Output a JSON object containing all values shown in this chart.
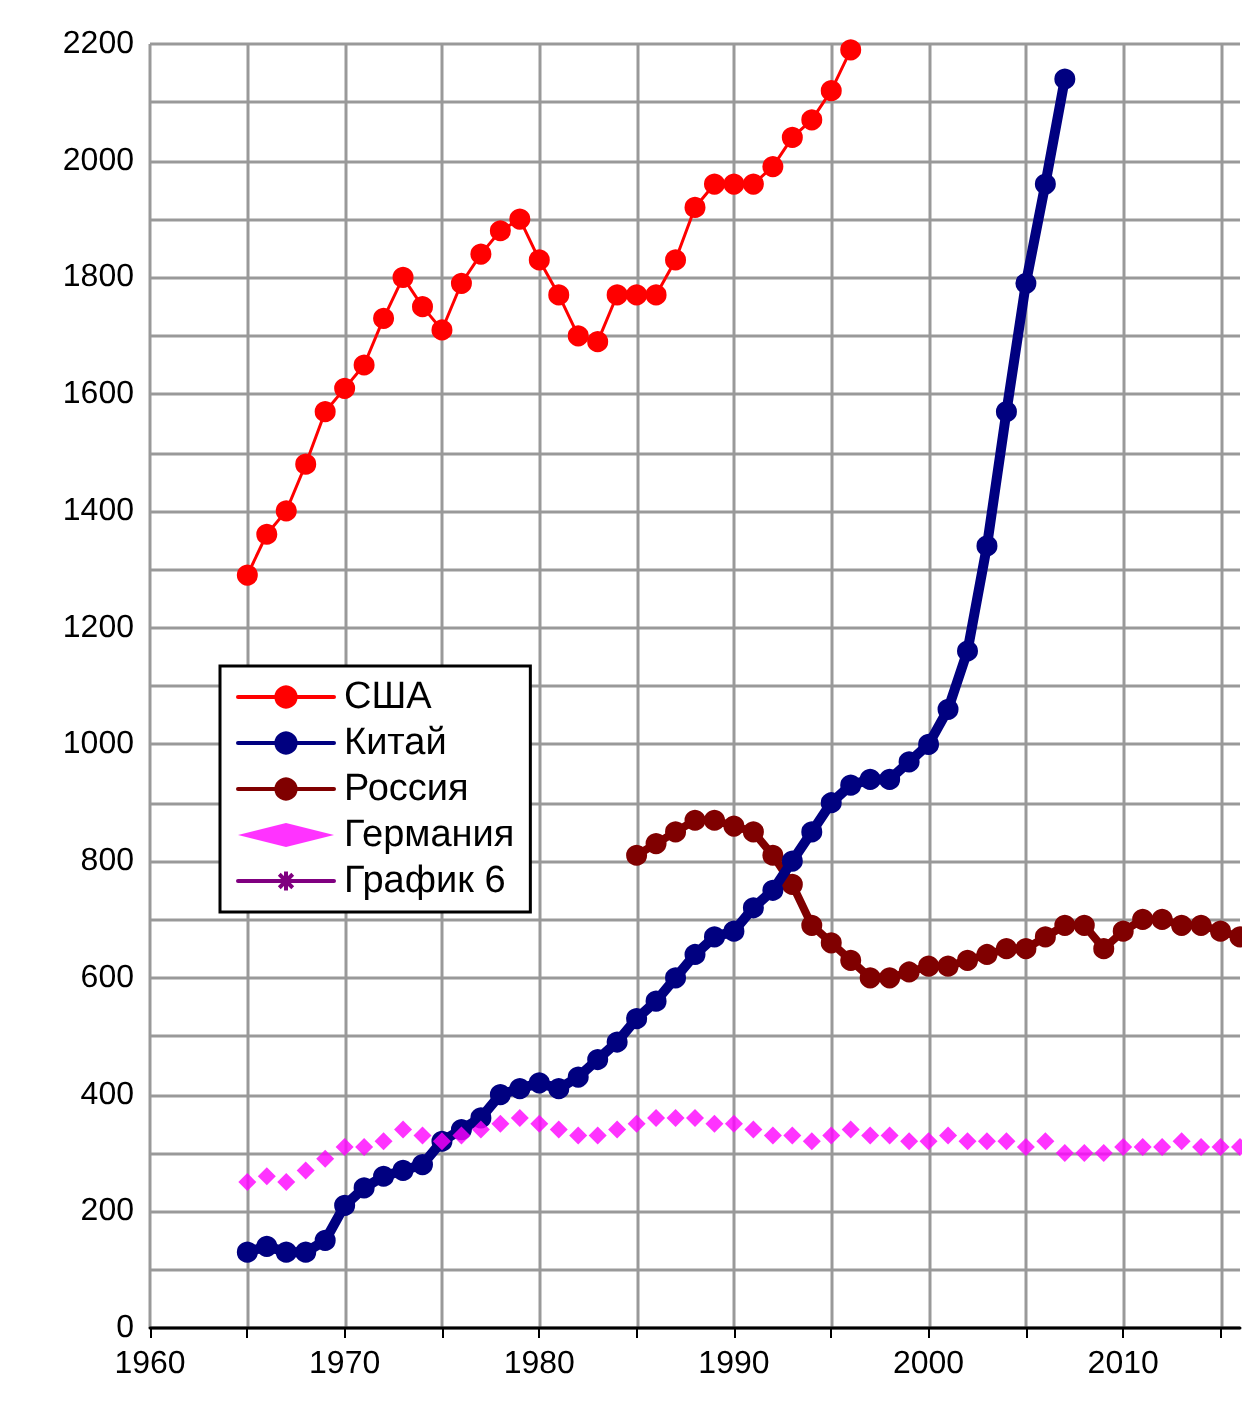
{
  "chart_data": {
    "type": "line",
    "x": [
      1965,
      1966,
      1967,
      1968,
      1969,
      1970,
      1971,
      1972,
      1973,
      1974,
      1975,
      1976,
      1977,
      1978,
      1979,
      1980,
      1981,
      1982,
      1983,
      1984,
      1985,
      1986,
      1987,
      1988,
      1989,
      1990,
      1991,
      1992,
      1993,
      1994,
      1995,
      1996,
      1997,
      1998,
      1999,
      2000,
      2001,
      2002,
      2003,
      2004,
      2005,
      2006,
      2007,
      2008,
      2009,
      2010,
      2011,
      2012,
      2013,
      2014,
      2015,
      2016
    ],
    "xlim": [
      1960,
      2016
    ],
    "xticks": [
      1960,
      {
        "value": 1965,
        "label": null
      },
      1970,
      {
        "value": 1975,
        "label": null
      },
      1980,
      {
        "value": 1985,
        "label": null
      },
      1990,
      {
        "value": 1995,
        "label": null
      },
      2000,
      {
        "value": 2005,
        "label": null
      },
      2010,
      {
        "value": 2015,
        "label": null
      }
    ],
    "ylim": [
      0,
      2200
    ],
    "yticks": [
      0,
      {
        "value": 100,
        "label": null
      },
      200,
      {
        "value": 300,
        "label": null
      },
      400,
      {
        "value": 500,
        "label": null
      },
      600,
      {
        "value": 700,
        "label": null
      },
      800,
      {
        "value": 900,
        "label": null
      },
      1000,
      {
        "value": 1100,
        "label": null
      },
      1200,
      {
        "value": 1300,
        "label": null
      },
      1400,
      {
        "value": 1500,
        "label": null
      },
      1600,
      {
        "value": 1700,
        "label": null
      },
      1800,
      {
        "value": 1900,
        "label": null
      },
      2000,
      {
        "value": 2100,
        "label": null
      },
      2200
    ],
    "grid": true,
    "legend": "left",
    "series": [
      {
        "name": "США",
        "color": "#ff0000",
        "marker": "circle",
        "values": [
          1290,
          1360,
          1400,
          1480,
          1570,
          1610,
          1650,
          1730,
          1800,
          1750,
          1710,
          1790,
          1840,
          1880,
          1900,
          1830,
          1770,
          1700,
          1690,
          1770,
          1770,
          1770,
          1830,
          1920,
          1960,
          1960,
          1960,
          1990,
          2040,
          2070,
          2120,
          2190,
          null,
          null,
          null,
          null,
          null,
          null,
          null,
          null,
          null,
          null,
          null,
          null,
          null,
          null,
          null,
          null,
          null,
          null,
          null,
          null
        ]
      },
      {
        "name": "Китай",
        "color": "#000080",
        "marker": "circle",
        "values": [
          130,
          140,
          130,
          130,
          150,
          210,
          240,
          260,
          270,
          280,
          320,
          340,
          360,
          400,
          410,
          420,
          410,
          430,
          460,
          490,
          530,
          560,
          600,
          640,
          670,
          680,
          720,
          750,
          800,
          850,
          900,
          930,
          940,
          940,
          970,
          1000,
          1060,
          1160,
          1340,
          1570,
          1790,
          1960,
          2140,
          null,
          null,
          null,
          null,
          null,
          null,
          null,
          null,
          null
        ]
      },
      {
        "name": "Россия",
        "color": "#800000",
        "marker": "circle",
        "x": [
          1985,
          1986,
          1987,
          1988,
          1989,
          1990,
          1991,
          1992,
          1993,
          1994,
          1995,
          1996,
          1997,
          1998,
          1999,
          2000,
          2001,
          2002,
          2003,
          2004,
          2005,
          2006,
          2007,
          2008,
          2009,
          2010,
          2011,
          2012,
          2013,
          2014,
          2015,
          2016
        ],
        "values": [
          810,
          830,
          850,
          870,
          870,
          860,
          850,
          810,
          760,
          690,
          660,
          630,
          600,
          600,
          610,
          620,
          620,
          630,
          640,
          650,
          650,
          670,
          690,
          690,
          650,
          680,
          700,
          700,
          690,
          690,
          680,
          670
        ]
      },
      {
        "name": "Германия",
        "type": "scatter",
        "color": "#ff00ff",
        "marker": "diamond",
        "values": [
          250,
          260,
          250,
          270,
          290,
          310,
          310,
          320,
          340,
          330,
          320,
          330,
          340,
          350,
          360,
          350,
          340,
          330,
          330,
          340,
          350,
          360,
          360,
          360,
          350,
          350,
          340,
          330,
          330,
          320,
          330,
          340,
          330,
          330,
          320,
          320,
          330,
          320,
          320,
          320,
          310,
          320,
          300,
          300,
          300,
          310,
          310,
          310,
          320,
          310,
          310,
          310
        ]
      },
      {
        "name": "График 6",
        "color": "#800080",
        "marker": "star",
        "values": [
          null,
          null,
          null,
          null,
          null,
          null,
          null,
          null,
          null,
          null,
          null,
          null,
          null,
          null,
          null,
          null,
          null,
          null,
          null,
          null,
          null,
          null,
          null,
          null,
          null,
          null,
          null,
          null,
          null,
          null,
          null,
          null,
          null,
          null,
          null,
          null,
          null,
          null,
          null,
          null,
          null,
          null,
          null,
          null,
          null,
          null,
          null,
          null,
          null,
          null,
          null,
          null
        ]
      }
    ]
  }
}
